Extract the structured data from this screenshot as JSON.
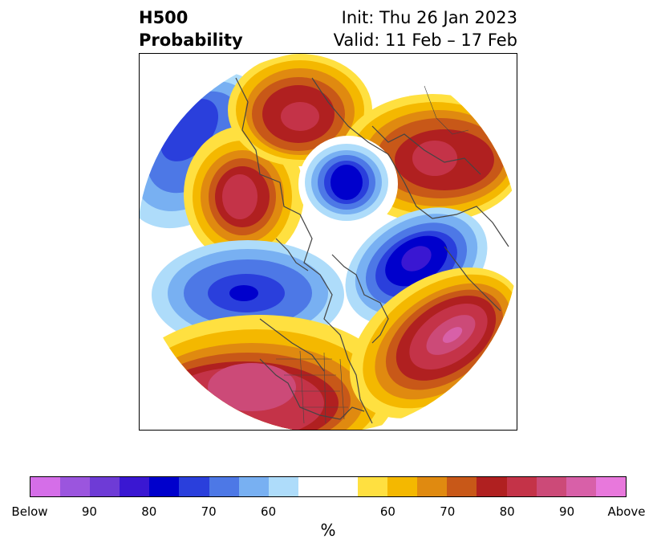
{
  "title": {
    "left_line1": "H500",
    "left_line2": "Probability",
    "right_line1": "Init: Thu 26 Jan 2023",
    "right_line2": "Valid: 11 Feb – 17 Feb"
  },
  "colorbar": {
    "unit": "%",
    "below_colors": [
      "#d56ee8",
      "#9b55de",
      "#6e3bd6",
      "#3a17d2",
      "#0000cc",
      "#2a3fdc",
      "#4d78e6",
      "#78b0f2",
      "#aedcfa"
    ],
    "neutral_color": "#ffffff",
    "above_colors": [
      "#ffe040",
      "#f4b800",
      "#e08a10",
      "#c85818",
      "#b02020",
      "#c43348",
      "#cc4a78",
      "#d860a8",
      "#e878dc"
    ],
    "tick_labels": [
      "Below",
      "90",
      "80",
      "70",
      "60",
      "60",
      "70",
      "80",
      "90",
      "Above"
    ]
  },
  "map": {
    "projection": "north-polar-stereographic",
    "anomalies": [
      {
        "region": "North Pacific / Aleutians",
        "sign": "below",
        "peak_percent": 80
      },
      {
        "region": "Alaska",
        "sign": "above",
        "peak_percent": 80
      },
      {
        "region": "Siberia",
        "sign": "above",
        "peak_percent": 80
      },
      {
        "region": "North Pole",
        "sign": "below",
        "peak_percent": 80
      },
      {
        "region": "Scandinavia / Europe",
        "sign": "above",
        "peak_percent": 80
      },
      {
        "region": "Canada / Hudson Bay",
        "sign": "below",
        "peak_percent": 80
      },
      {
        "region": "Greenland / Labrador Sea",
        "sign": "below",
        "peak_percent": 80
      },
      {
        "region": "Southwestern United States",
        "sign": "above",
        "peak_percent": 90
      },
      {
        "region": "Central North Atlantic",
        "sign": "above",
        "peak_percent": 90
      }
    ]
  }
}
